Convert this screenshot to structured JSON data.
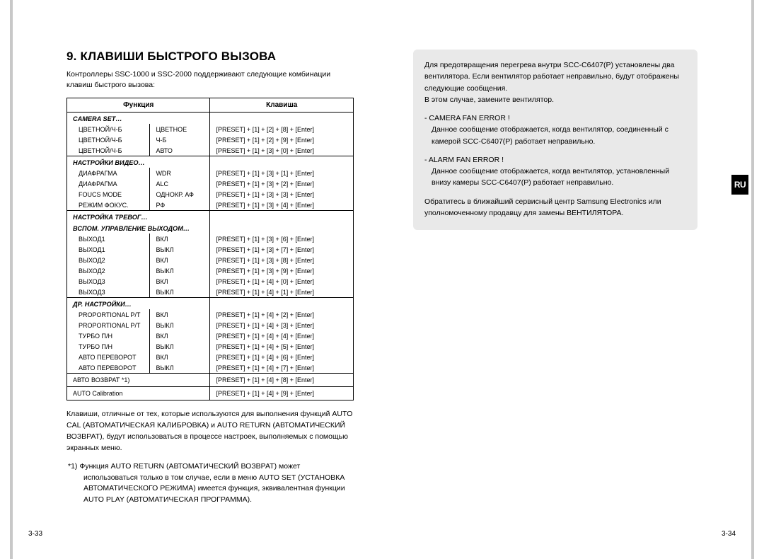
{
  "colors": {
    "border_stripe": "#c8c8c8",
    "info_box_bg": "#e9e9e9",
    "tab_bg": "#000000",
    "tab_text": "#ffffff",
    "text": "#000000"
  },
  "left": {
    "heading": "9. КЛАВИШИ БЫСТРОГО ВЫЗОВА",
    "intro": "Контроллеры SSC-1000 и SSC-2000 поддерживают следующие комбинации клавиш быстрого вызова:",
    "th_function": "Функция",
    "th_key": "Клавиша",
    "sections": [
      {
        "title": "CAMERA SET…",
        "rows": [
          {
            "f1": "ЦВЕТНОЙ/Ч-Б",
            "f2": "ЦВЕТНОЕ",
            "k": "[PRESET] + [1] + [2] + [8] + [Enter]"
          },
          {
            "f1": "ЦВЕТНОЙ/Ч-Б",
            "f2": "Ч-Б",
            "k": "[PRESET] + [1] + [2] + [9] + [Enter]"
          },
          {
            "f1": "ЦВЕТНОЙ/Ч-Б",
            "f2": "АВТО",
            "k": "[PRESET] + [1] + [3] + [0] + [Enter]"
          }
        ]
      },
      {
        "title": "НАСТРОЙКИ ВИДЕО…",
        "rows": [
          {
            "f1": "ДИАФРАГМА",
            "f2": "WDR",
            "k": "[PRESET] + [1] + [3] + [1] + [Enter]"
          },
          {
            "f1": "ДИАФРАГМА",
            "f2": "ALC",
            "k": "[PRESET] + [1] + [3] + [2] + [Enter]"
          },
          {
            "f1": "FOUCS MODE",
            "f2": "ОДНОКР. АФ",
            "k": "[PRESET] + [1] + [3] + [3] + [Enter]"
          },
          {
            "f1": "РЕЖИМ ФОКУС.",
            "f2": "РФ",
            "k": "[PRESET] + [1] + [3] + [4] + [Enter]"
          }
        ]
      },
      {
        "title": "НАСТРОЙКА ТРЕВОГ…",
        "subtitle": "ВСПОМ. УПРАВЛЕНИЕ ВЫХОДОМ…",
        "rows": [
          {
            "f1": "ВЫХОД1",
            "f2": "ВКЛ",
            "k": "[PRESET] + [1] + [3] + [6] + [Enter]"
          },
          {
            "f1": "ВЫХОД1",
            "f2": "ВЫКЛ",
            "k": "[PRESET] + [1] + [3] + [7] + [Enter]"
          },
          {
            "f1": "ВЫХОД2",
            "f2": "ВКЛ",
            "k": "[PRESET] + [1] + [3] + [8] + [Enter]"
          },
          {
            "f1": "ВЫХОД2",
            "f2": "ВЫКЛ",
            "k": "[PRESET] + [1] + [3] + [9] + [Enter]"
          },
          {
            "f1": "ВЫХОД3",
            "f2": "ВКЛ",
            "k": "[PRESET] + [1] + [4] + [0] + [Enter]"
          },
          {
            "f1": "ВЫХОД3",
            "f2": "ВЫКЛ",
            "k": "[PRESET] + [1] + [4] + [1] + [Enter]"
          }
        ]
      },
      {
        "title": "ДР. НАСТРОЙКИ…",
        "rows": [
          {
            "f1": "PROPORTIONAL P/T",
            "f2": "ВКЛ",
            "k": "[PRESET] + [1] + [4] + [2] + [Enter]"
          },
          {
            "f1": "PROPORTIONAL P/T",
            "f2": "ВЫКЛ",
            "k": "[PRESET] + [1] + [4] + [3] + [Enter]"
          },
          {
            "f1": "ТУРБО П/Н",
            "f2": "ВКЛ",
            "k": "[PRESET] + [1] + [4] + [4] + [Enter]"
          },
          {
            "f1": "ТУРБО П/Н",
            "f2": "ВЫКЛ",
            "k": "[PRESET] + [1] + [4] + [5] + [Enter]"
          },
          {
            "f1": "АВТО ПЕРЕВОРОТ",
            "f2": "ВКЛ",
            "k": "[PRESET] + [1] + [4] + [6] + [Enter]"
          },
          {
            "f1": "АВТО ПЕРЕВОРОТ",
            "f2": "ВЫКЛ",
            "k": "[PRESET] + [1] + [4] + [7] + [Enter]"
          }
        ]
      }
    ],
    "bottom_rows": [
      {
        "f": "АВТО ВОЗВРАТ *1)",
        "k": "[PRESET] + [1] + [4] + [8] + [Enter]"
      },
      {
        "f": "AUTO Calibration",
        "k": "[PRESET] + [1] + [4] + [9] + [Enter]"
      }
    ],
    "note1": "Клавиши, отличные от тех, которые используются для выполнения функций AUTO CAL (АВТОМАТИЧЕСКАЯ КАЛИБРОВКА) и AUTO RETURN (АВТОМАТИЧЕСКИЙ ВОЗВРАТ), будут использоваться в процессе настроек, выполняемых с помощью экранных меню.",
    "note2": "*1)  Функция AUTO RETURN (АВТОМАТИЧЕСКИЙ ВОЗВРАТ) может использоваться только в том случае, если в меню AUTO SET (УСТАНОВКА АВТОМАТИЧЕСКОГО РЕЖИМА) имеется функция, эквивалентная функции AUTO PLAY (АВТОМАТИЧЕСКАЯ ПРОГРАММА).",
    "page_num": "3-33"
  },
  "right": {
    "info_p1": "Для предотвращения перегрева внутри SCC-C6407(P) установлены два вентилятора. Если вентилятор работает неправильно, будут отображены следующие сообщения.",
    "info_p2": "В этом случае, замените вентилятор.",
    "err1_head": "- CAMERA FAN ERROR !",
    "err1_body": "Данное сообщение отображается, когда вентилятор, соединенный с камерой SCC-C6407(P) работает неправильно.",
    "err2_head": "- ALARM FAN ERROR !",
    "err2_body": "Данное сообщение отображается, когда вентилятор, установленный внизу камеры SCC-C6407(P) работает неправильно.",
    "info_p3": "Обратитесь в ближайший сервисный центр Samsung Electronics или уполномоченному продавцу для замены ВЕНТИЛЯТОРА.",
    "tab_label": "RU",
    "page_num": "3-34"
  }
}
